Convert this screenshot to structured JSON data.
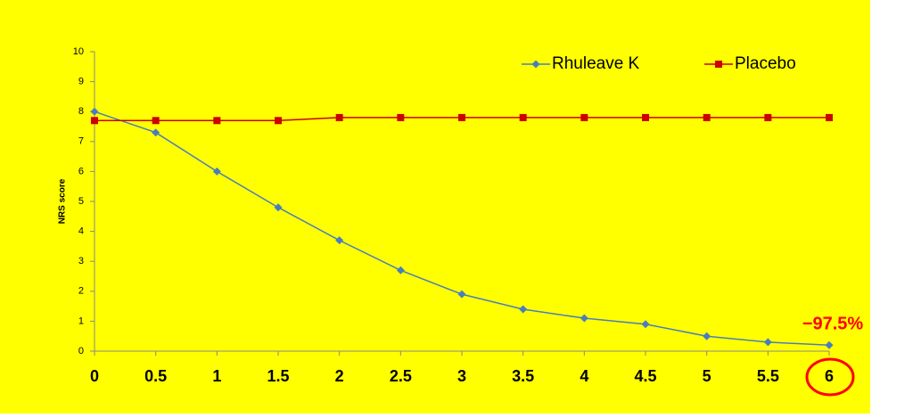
{
  "chart_data": {
    "type": "line",
    "y_label": "NRS score",
    "x": [
      0,
      0.5,
      1,
      1.5,
      2,
      2.5,
      3,
      3.5,
      4,
      4.5,
      5,
      5.5,
      6
    ],
    "series": [
      {
        "name": "Rhuleave K",
        "color": "#4a7ebb",
        "marker": "diamond",
        "values": [
          8,
          7.3,
          6,
          4.8,
          3.7,
          2.7,
          1.9,
          1.4,
          1.1,
          0.9,
          0.5,
          0.3,
          0.2
        ]
      },
      {
        "name": "Placebo",
        "color": "#cc0000",
        "marker": "square",
        "values": [
          7.7,
          7.7,
          7.7,
          7.7,
          7.8,
          7.8,
          7.8,
          7.8,
          7.8,
          7.8,
          7.8,
          7.8,
          7.8
        ]
      }
    ],
    "xlim": [
      0,
      6
    ],
    "xticks": [
      0,
      0.5,
      1,
      1.5,
      2,
      2.5,
      3,
      3.5,
      4,
      4.5,
      5,
      5.5,
      6
    ],
    "ylim": [
      0,
      10
    ],
    "yticks": [
      0,
      1,
      2,
      3,
      4,
      5,
      6,
      7,
      8,
      9,
      10
    ],
    "grid": false,
    "legend": "top-right",
    "annotation": "−97.5%"
  }
}
